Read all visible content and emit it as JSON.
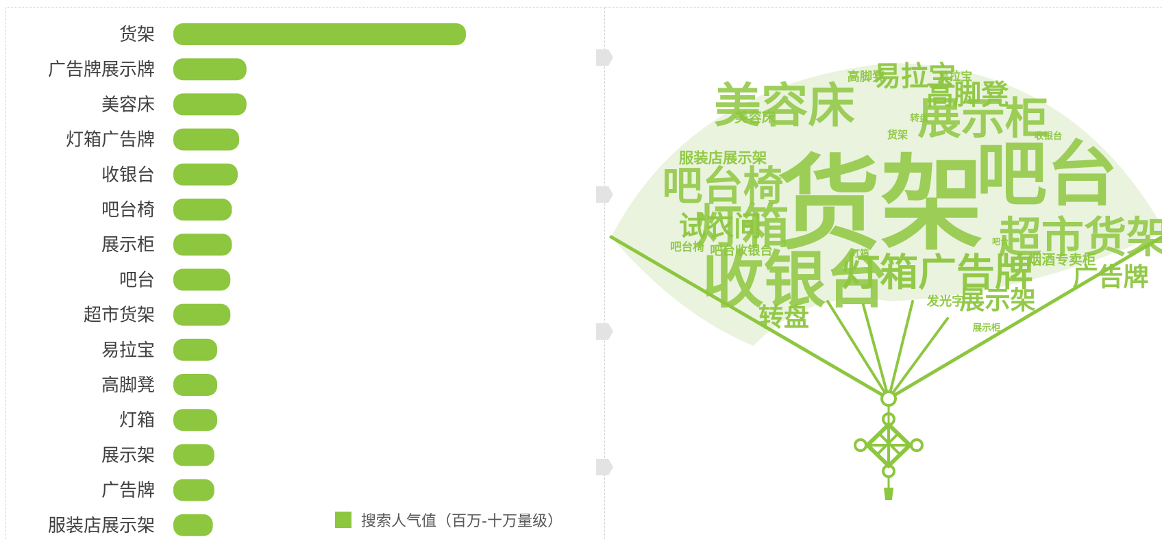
{
  "chart_data": [
    {
      "type": "bar",
      "orientation": "horizontal",
      "categories": [
        "货架",
        "广告牌展示牌",
        "美容床",
        "灯箱广告牌",
        "收银台",
        "吧台椅",
        "展示柜",
        "吧台",
        "超市货架",
        "易拉宝",
        "高脚凳",
        "灯箱",
        "展示架",
        "广告牌",
        "服装店展示架"
      ],
      "series": [
        {
          "name": "搜索人气值（百万-十万量级）",
          "values": [
            100,
            25,
            25,
            22.5,
            22,
            20,
            20,
            19.5,
            19.5,
            15,
            15,
            15,
            14,
            14,
            13.5
          ]
        }
      ],
      "color": "#8dc63f",
      "grid": false,
      "legend_position": "bottom-right"
    },
    {
      "type": "wordcloud",
      "shape": "folding-fan",
      "color": "#8dc63f",
      "words": [
        {
          "text": "货架",
          "weight": 100
        },
        {
          "text": "吧台",
          "weight": 70
        },
        {
          "text": "收银台",
          "weight": 62
        },
        {
          "text": "美容床",
          "weight": 48
        },
        {
          "text": "灯箱",
          "weight": 48
        },
        {
          "text": "展示柜",
          "weight": 45
        },
        {
          "text": "超市货架",
          "weight": 44
        },
        {
          "text": "吧台椅",
          "weight": 42
        },
        {
          "text": "灯箱广告牌",
          "weight": 40
        },
        {
          "text": "高脚凳",
          "weight": 30
        },
        {
          "text": "易拉宝",
          "weight": 30
        },
        {
          "text": "试衣间",
          "weight": 30
        },
        {
          "text": "广告牌",
          "weight": 28
        },
        {
          "text": "展示架",
          "weight": 28
        },
        {
          "text": "转盘",
          "weight": 28
        },
        {
          "text": "服装店展示架",
          "weight": 18
        },
        {
          "text": "烟酒专卖柜",
          "weight": 17
        },
        {
          "text": "发光字",
          "weight": 16
        },
        {
          "text": "吧台收银台",
          "weight": 16
        },
        {
          "text": "吧台椅",
          "weight": 15
        },
        {
          "text": "美容床",
          "weight": 17
        },
        {
          "text": "货架",
          "weight": 14
        },
        {
          "text": "收银台",
          "weight": 13
        },
        {
          "text": "展示柜",
          "weight": 13
        },
        {
          "text": "转盘",
          "weight": 13
        },
        {
          "text": "高脚凳",
          "weight": 16
        },
        {
          "text": "易拉宝",
          "weight": 15
        },
        {
          "text": "吧台",
          "weight": 12
        },
        {
          "text": "灯箱",
          "weight": 13
        }
      ]
    }
  ]
}
